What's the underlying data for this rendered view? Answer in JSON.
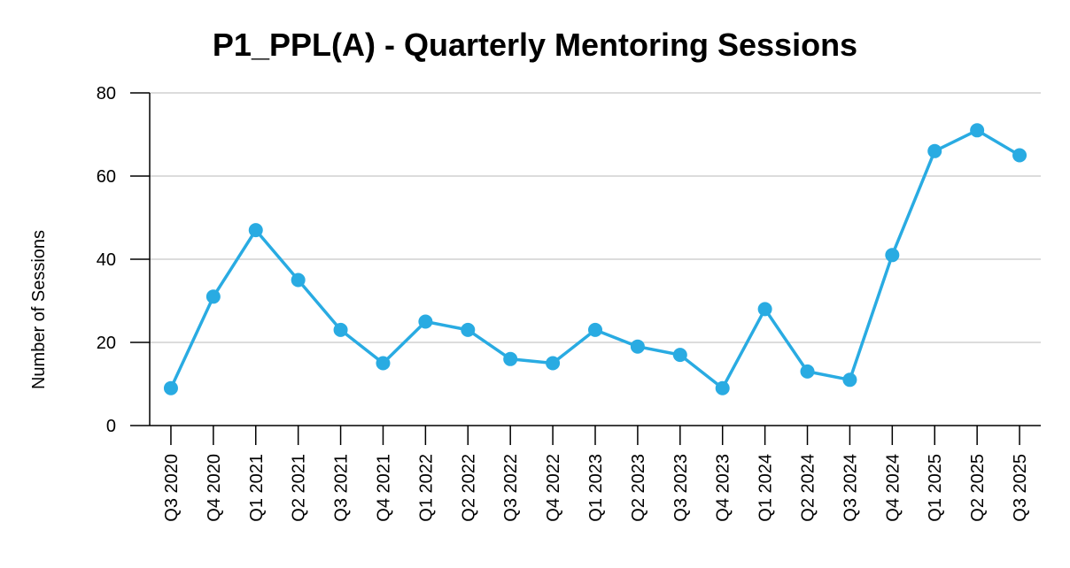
{
  "chart_data": {
    "type": "line",
    "title": "P1_PPL(A) - Quarterly Mentoring Sessions",
    "xlabel": "",
    "ylabel": "Number of Sessions",
    "categories": [
      "Q3 2020",
      "Q4 2020",
      "Q1 2021",
      "Q2 2021",
      "Q3 2021",
      "Q4 2021",
      "Q1 2022",
      "Q2 2022",
      "Q3 2022",
      "Q4 2022",
      "Q1 2023",
      "Q2 2023",
      "Q3 2023",
      "Q4 2023",
      "Q1 2024",
      "Q2 2024",
      "Q3 2024",
      "Q4 2024",
      "Q1 2025",
      "Q2 2025",
      "Q3 2025"
    ],
    "series": [
      {
        "values": [
          9,
          31,
          47,
          35,
          23,
          15,
          25,
          23,
          16,
          15,
          23,
          19,
          17,
          9,
          28,
          13,
          11,
          41,
          66,
          71,
          65
        ],
        "color": "#29abe2"
      }
    ],
    "ylim": [
      0,
      80
    ],
    "yticks": [
      0,
      20,
      40,
      60,
      80
    ],
    "grid": "horizontal",
    "legend": "none"
  }
}
